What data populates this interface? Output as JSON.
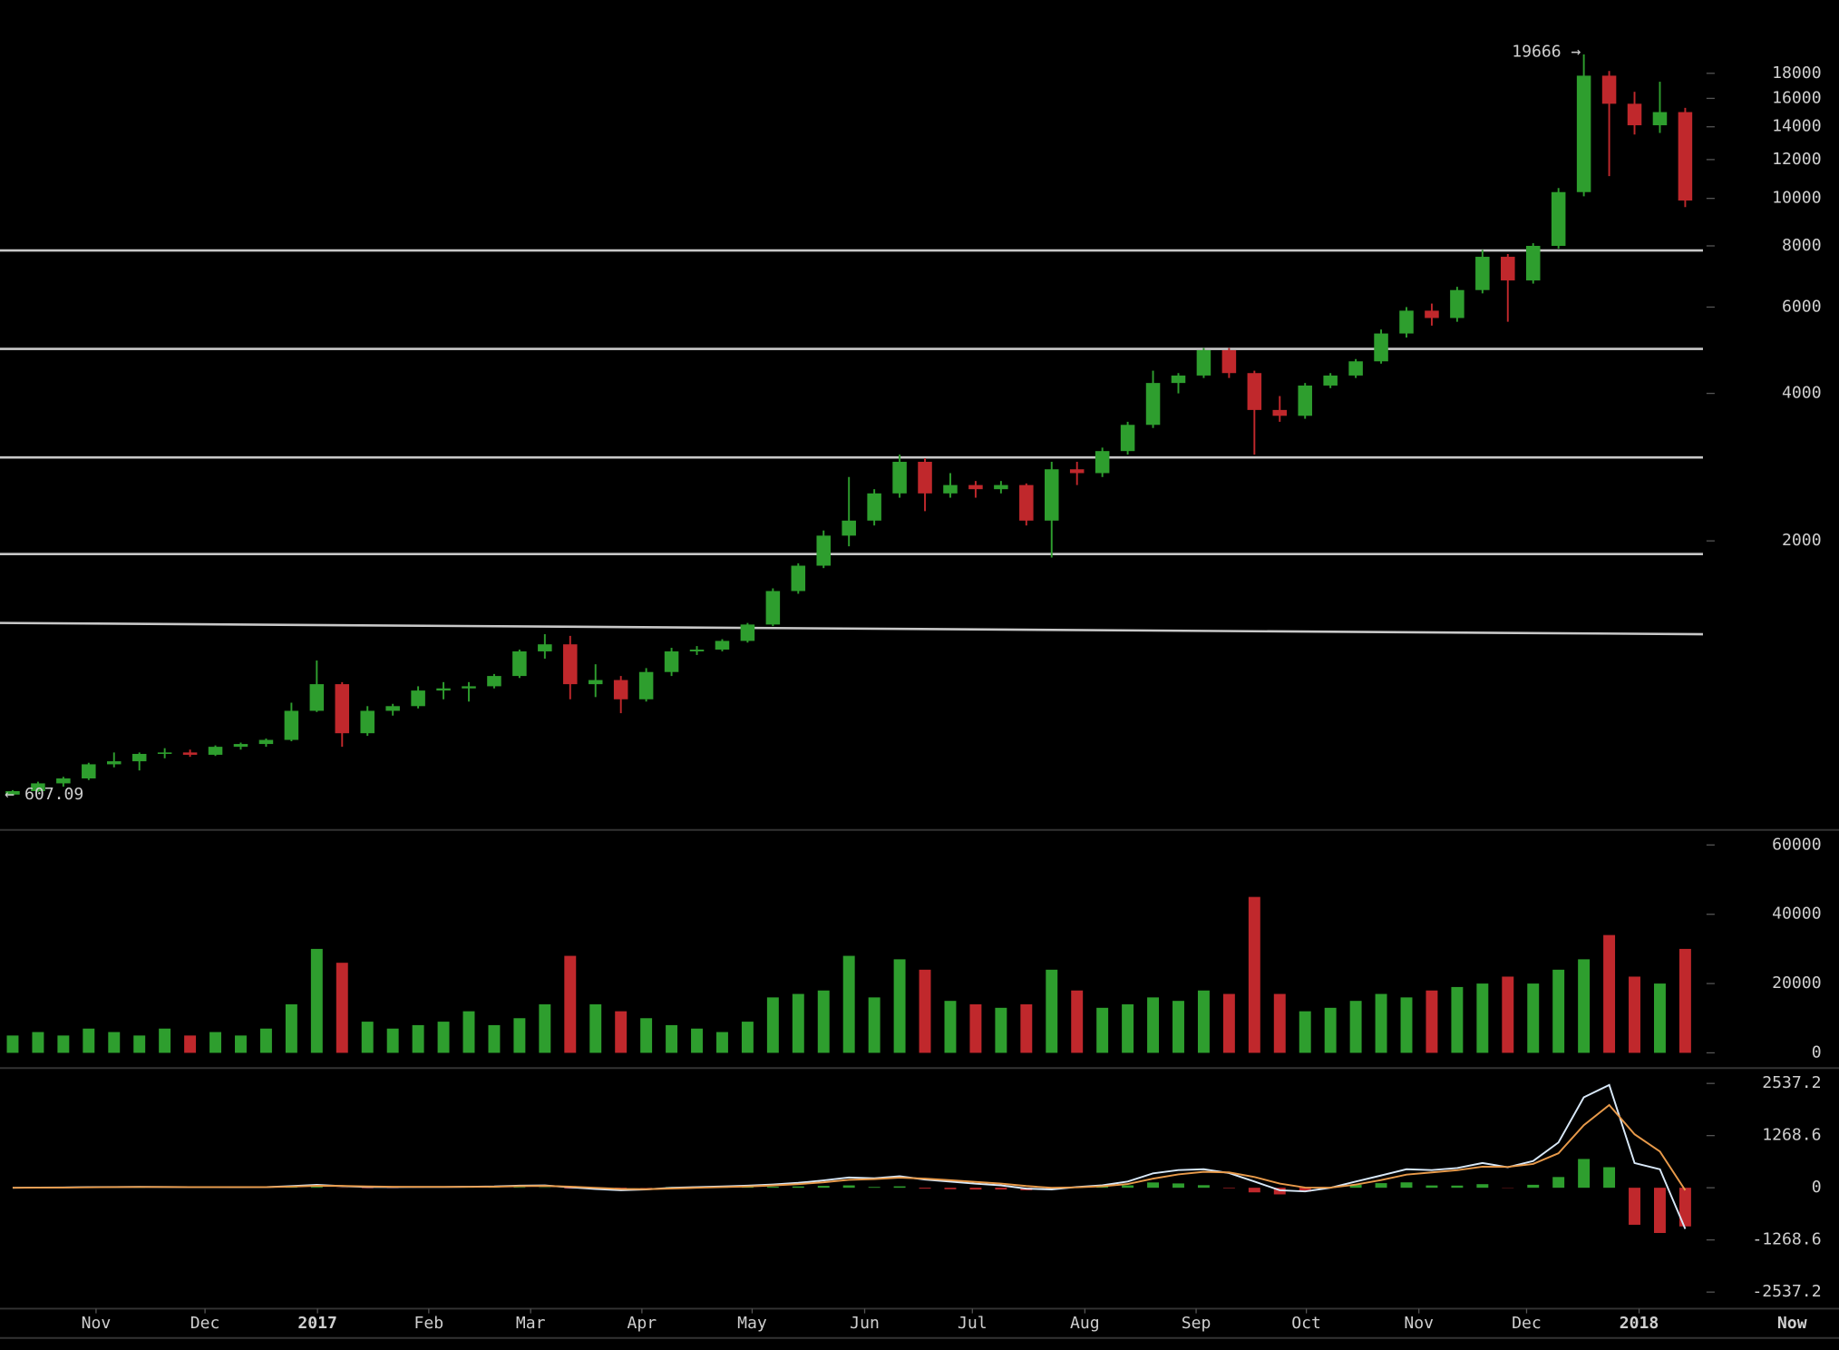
{
  "chart_data": [
    {
      "type": "candlestick",
      "log_scale": true,
      "ylim": [
        520,
        21500
      ],
      "yticks": [
        2000,
        4000,
        6000,
        8000,
        10000,
        12000,
        14000,
        16000,
        18000
      ],
      "xlim": [
        0,
        67.2
      ],
      "up_color": "#2e9e2e",
      "down_color": "#c0282c",
      "line_color": "#c8c8c8",
      "open": [
        607.09,
        617,
        640,
        655,
        700,
        710,
        735,
        740,
        732,
        760,
        770,
        785,
        900,
        1020,
        810,
        900,
        920,
        990,
        1000,
        1010,
        1060,
        1190,
        1230,
        1020,
        1040,
        950,
        1080,
        1190,
        1200,
        1250,
        1350,
        1580,
        1780,
        2050,
        2200,
        2500,
        2900,
        2500,
        2600,
        2550,
        2600,
        2200,
        2800,
        2750,
        3050,
        3450,
        4200,
        4350,
        4900,
        4400,
        3700,
        3600,
        4150,
        4350,
        4650,
        5300,
        5900,
        5700,
        6500,
        7600,
        6800,
        8000,
        10300,
        17800,
        15600,
        14100,
        15000
      ],
      "high": [
        620,
        645,
        660,
        705,
        740,
        740,
        755,
        750,
        765,
        775,
        790,
        935,
        1140,
        1030,
        920,
        930,
        1010,
        1030,
        1030,
        1070,
        1200,
        1290,
        1280,
        1120,
        1060,
        1100,
        1210,
        1220,
        1260,
        1360,
        1600,
        1800,
        2100,
        2700,
        2550,
        3000,
        2950,
        2750,
        2650,
        2650,
        2620,
        2900,
        2900,
        3100,
        3500,
        4450,
        4400,
        4950,
        4950,
        4450,
        3950,
        4200,
        4400,
        4700,
        5400,
        6000,
        6100,
        6600,
        7850,
        7700,
        8100,
        10500,
        19666,
        18200,
        16500,
        17300,
        15300
      ],
      "low": [
        605,
        615,
        630,
        650,
        690,
        680,
        720,
        725,
        728,
        750,
        760,
        780,
        895,
        760,
        800,
        880,
        910,
        950,
        940,
        1000,
        1050,
        1150,
        950,
        960,
        890,
        940,
        1060,
        1170,
        1190,
        1240,
        1340,
        1560,
        1760,
        1950,
        2150,
        2450,
        2300,
        2450,
        2450,
        2500,
        2150,
        1850,
        2600,
        2700,
        3000,
        3400,
        4000,
        4300,
        4300,
        3000,
        3500,
        3550,
        4100,
        4300,
        4600,
        5200,
        5500,
        5600,
        6400,
        5600,
        6700,
        7900,
        10100,
        11100,
        13500,
        13600,
        9600
      ],
      "close": [
        617,
        640,
        655,
        700,
        710,
        735,
        740,
        732,
        760,
        770,
        785,
        900,
        1020,
        810,
        900,
        920,
        990,
        1000,
        1010,
        1060,
        1190,
        1230,
        1020,
        1040,
        950,
        1080,
        1190,
        1200,
        1250,
        1350,
        1580,
        1780,
        2050,
        2200,
        2500,
        2900,
        2500,
        2600,
        2550,
        2600,
        2200,
        2800,
        2750,
        3050,
        3450,
        4200,
        4350,
        4900,
        4400,
        3700,
        3600,
        4150,
        4350,
        4650,
        5300,
        5900,
        5700,
        6500,
        7600,
        6800,
        8000,
        10300,
        17800,
        15600,
        14100,
        15000,
        9900
      ],
      "levels": [
        7830,
        4930,
        2960,
        1880
      ],
      "trendline": {
        "start": 1360,
        "end": 1290
      },
      "annotations": [
        {
          "value": 19666,
          "label": "19666 →"
        },
        {
          "value": 607.09,
          "label": "← 607.09"
        }
      ]
    },
    {
      "type": "volume",
      "ylim": [
        0,
        63000
      ],
      "yticks": [
        0,
        20000,
        40000,
        60000
      ],
      "values": [
        5000,
        6000,
        5000,
        7000,
        6000,
        5000,
        7000,
        5000,
        6000,
        5000,
        7000,
        14000,
        30000,
        26000,
        9000,
        7000,
        8000,
        9000,
        12000,
        8000,
        10000,
        14000,
        28000,
        14000,
        12000,
        10000,
        8000,
        7000,
        6000,
        9000,
        16000,
        17000,
        18000,
        28000,
        16000,
        27000,
        24000,
        15000,
        14000,
        13000,
        14000,
        24000,
        18000,
        13000,
        14000,
        16000,
        15000,
        18000,
        17000,
        45000,
        17000,
        12000,
        13000,
        15000,
        17000,
        16000,
        18000,
        19000,
        20000,
        22000,
        20000,
        24000,
        27000,
        34000,
        22000,
        20000,
        30000
      ]
    },
    {
      "type": "macd",
      "ylim": [
        -2940,
        2910
      ],
      "yticks": [
        2537.2,
        1268.6,
        0,
        -1268.6,
        -2537.2
      ],
      "xlim": [
        0,
        67.2
      ],
      "xticks": [
        {
          "value": 3.79,
          "label": "Nov"
        },
        {
          "value": 8.09,
          "label": "Dec"
        },
        {
          "value": 12.53,
          "label": "2017"
        },
        {
          "value": 16.92,
          "label": "Feb"
        },
        {
          "value": 20.94,
          "label": "Mar"
        },
        {
          "value": 25.33,
          "label": "Apr"
        },
        {
          "value": 29.68,
          "label": "May"
        },
        {
          "value": 34.12,
          "label": "Jun"
        },
        {
          "value": 38.37,
          "label": "Jul"
        },
        {
          "value": 42.81,
          "label": "Aug"
        },
        {
          "value": 47.2,
          "label": "Sep"
        },
        {
          "value": 51.55,
          "label": "Oct"
        },
        {
          "value": 55.99,
          "label": "Nov"
        },
        {
          "value": 60.24,
          "label": "Dec"
        },
        {
          "value": 64.68,
          "label": "2018"
        }
      ],
      "now_label": "Now",
      "series": [
        {
          "color": "#d8e8f8",
          "values": [
            0,
            5,
            8,
            15,
            20,
            22,
            20,
            15,
            15,
            14,
            15,
            40,
            70,
            40,
            20,
            15,
            20,
            20,
            25,
            30,
            50,
            55,
            10,
            -30,
            -60,
            -40,
            0,
            15,
            30,
            50,
            80,
            120,
            180,
            250,
            230,
            280,
            200,
            150,
            100,
            60,
            -20,
            -40,
            20,
            60,
            150,
            350,
            430,
            450,
            360,
            150,
            -60,
            -90,
            0,
            150,
            300,
            450,
            430,
            480,
            600,
            500,
            650,
            1100,
            2200,
            2500,
            600,
            450,
            -1000
          ]
        },
        {
          "color": "#e89a4a",
          "values": [
            0,
            2,
            5,
            10,
            15,
            18,
            19,
            17,
            16,
            15,
            15,
            27,
            48,
            44,
            32,
            24,
            22,
            21,
            23,
            26,
            38,
            46,
            28,
            0,
            -30,
            -35,
            -18,
            0,
            15,
            32,
            56,
            88,
            134,
            192,
            211,
            245,
            222,
            186,
            143,
            102,
            41,
            0,
            10,
            35,
            92,
            221,
            325,
            387,
            373,
            262,
            101,
            5,
            3,
            76,
            188,
            319,
            374,
            427,
            513,
            507,
            578,
            839,
            1520,
            2010,
            1300,
            880,
            -60
          ]
        }
      ],
      "histogram": [
        0,
        3,
        3,
        5,
        5,
        4,
        1,
        -2,
        -1,
        -1,
        0,
        13,
        22,
        -4,
        -12,
        -9,
        -2,
        -1,
        2,
        4,
        12,
        9,
        -18,
        -30,
        -30,
        -5,
        18,
        15,
        15,
        18,
        24,
        32,
        46,
        58,
        19,
        35,
        -22,
        -36,
        -43,
        -42,
        -61,
        -40,
        10,
        25,
        58,
        129,
        105,
        63,
        -13,
        -112,
        -161,
        -95,
        -3,
        74,
        112,
        131,
        56,
        53,
        87,
        -7,
        72,
        261,
        700,
        500,
        -900,
        -1100,
        -940
      ]
    }
  ]
}
